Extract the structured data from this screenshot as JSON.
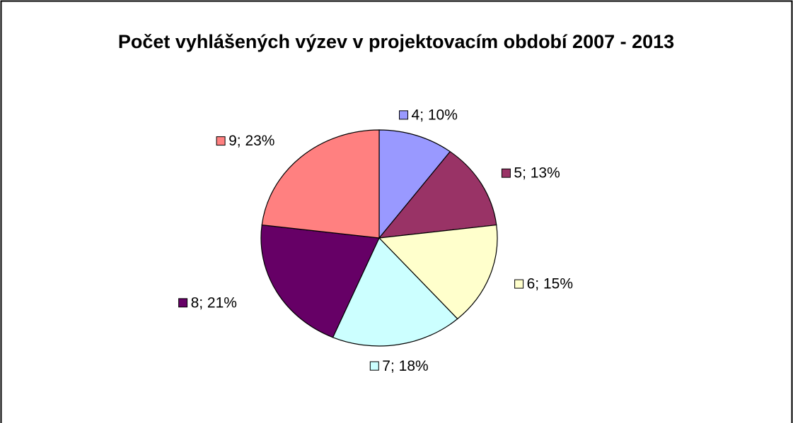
{
  "chart_data": {
    "type": "pie",
    "title": "Počet vyhlášených výzev v projektovacím období 2007 - 2013",
    "values": [
      4,
      5,
      6,
      7,
      8,
      9
    ],
    "value_labels": [
      "4; 10%",
      "5; 13%",
      "6; 15%",
      "7; 18%",
      "8; 21%",
      "9; 23%"
    ],
    "colors": [
      "#9999ff",
      "#993366",
      "#ffffcc",
      "#ccffff",
      "#660066",
      "#ff8080"
    ]
  }
}
